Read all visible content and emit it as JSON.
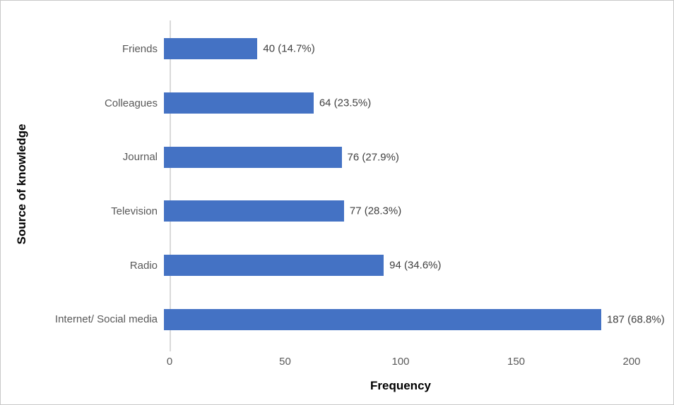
{
  "chart_data": {
    "type": "bar",
    "orientation": "horizontal",
    "title": "",
    "xlabel": "Frequency",
    "ylabel": "Source of knowledge",
    "categories": [
      "Friends",
      "Colleagues",
      "Journal",
      "Television",
      "Radio",
      "Internet/ Social media"
    ],
    "values": [
      40,
      64,
      76,
      77,
      94,
      187
    ],
    "data_labels": [
      "40 (14.7%)",
      "64 (23.5%)",
      "76 (27.9%)",
      "77 (28.3%)",
      "94 (34.6%)",
      "187 (68.8%)"
    ],
    "xlim": [
      0,
      200
    ],
    "xticks": [
      "0",
      "50",
      "100",
      "150",
      "200"
    ],
    "grid": false,
    "legend": false,
    "bar_color": "#4472c4",
    "axis_line_color": "#d9d9d9",
    "tick_text_color": "#595959",
    "data_label_color": "#404040"
  }
}
